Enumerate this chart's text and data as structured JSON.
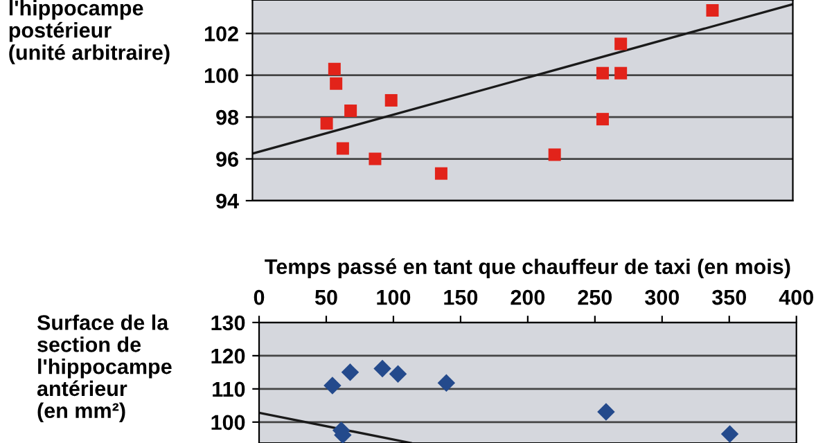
{
  "chart_data": [
    {
      "type": "scatter",
      "ylabel": "l'hippocampe\npostérieur\n(unité arbitraire)",
      "xlim": [
        -5,
        397
      ],
      "xticks": [
        0,
        50,
        100,
        150,
        200,
        250,
        300,
        350
      ],
      "ylim": [
        94,
        103.6
      ],
      "yticks": [
        94,
        96,
        98,
        100,
        102
      ],
      "tick_labels": "y",
      "grid": "y",
      "marker": "square",
      "series": [
        {
          "color": "#e2231a",
          "x": [
            50.2,
            56.0,
            57.2,
            68.0,
            62.2,
            86.2,
            98.2,
            135.4,
            219.8,
            255.5,
            255.5,
            269.0,
            269.0,
            337.2
          ],
          "values": [
            97.7,
            100.3,
            99.6,
            98.3,
            96.5,
            96.0,
            98.8,
            95.3,
            96.2,
            100.1,
            97.9,
            101.5,
            100.1,
            103.1
          ]
        },
        {
          "type": "line",
          "color": "#1a1a1a",
          "marker": "none",
          "x": [
            -5,
            397
          ],
          "values": [
            96.25,
            103.4
          ]
        }
      ]
    },
    {
      "type": "scatter",
      "ylabel": "Surface de la\nsection de\nl'hippocampe\nantérieur\n(en mm²)",
      "xlabel": "Temps passé en tant que chauffeur de taxi (en mois)",
      "xlim": [
        0,
        400
      ],
      "xticks": [
        0,
        50,
        100,
        150,
        200,
        250,
        300,
        350,
        400
      ],
      "ylim": [
        93.7,
        130
      ],
      "yticks": [
        100,
        110,
        120,
        130
      ],
      "grid": "y",
      "marker": "diamond",
      "series": [
        {
          "color": "#244a8c",
          "x": [
            54.6,
            67.8,
            91.8,
            103.4,
            139.4,
            258.3,
            350.4,
            61.2,
            62.3
          ],
          "values": [
            111.0,
            115.0,
            116.1,
            114.5,
            111.8,
            103.1,
            96.4,
            97.5,
            96.1
          ]
        },
        {
          "type": "line",
          "color": "#1a1a1a",
          "marker": "none",
          "x": [
            0,
            113
          ],
          "values": [
            102.8,
            93.7
          ]
        }
      ]
    }
  ]
}
